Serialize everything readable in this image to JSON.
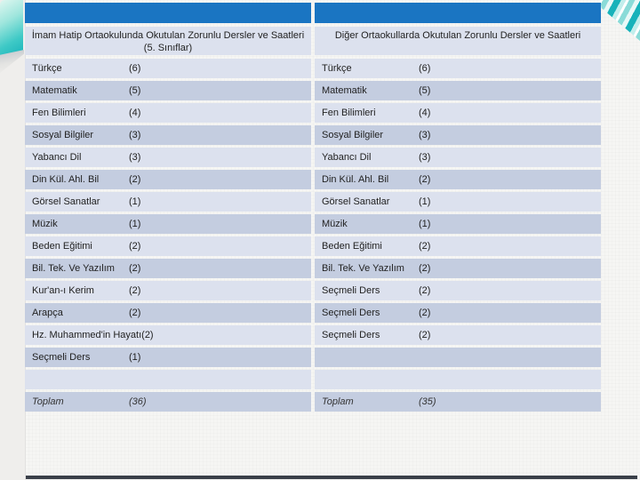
{
  "slide": {
    "type_label": "presentation-slide-curriculum-comparison-table",
    "colors": {
      "background": "#f6f6f4",
      "accent-bar": "#1a75c2",
      "band-light": "#dce1ee",
      "band-dark": "#c4cde0",
      "corner-accent": "#17b2ba",
      "bottom-bar": "#3a4049"
    }
  },
  "table": {
    "columns": [
      {
        "title_line1": "İmam Hatip Ortaokulunda Okutulan Zorunlu Dersler ve Saatleri",
        "title_line2": "(5. Sınıflar)",
        "rows": [
          [
            "Türkçe",
            "(6)"
          ],
          [
            "Matematik",
            "(5)"
          ],
          [
            "Fen Bilimleri",
            "(4)"
          ],
          [
            "Sosyal Bilgiler",
            "(3)"
          ],
          [
            "Yabancı Dil",
            "(3)"
          ],
          [
            "Din Kül. Ahl. Bil",
            "(2)"
          ],
          [
            "Görsel Sanatlar",
            "(1)"
          ],
          [
            "Müzik",
            "(1)"
          ],
          [
            "Beden Eğitimi",
            "(2)"
          ],
          [
            "Bil. Tek. Ve Yazılım",
            "(2)"
          ],
          [
            "Kur'an-ı Kerim",
            "(2)"
          ],
          [
            "Arapça",
            "(2)"
          ],
          [
            "Hz. Muhammed'in Hayatı",
            "(2)"
          ],
          [
            "Seçmeli Ders",
            "(1)"
          ],
          [
            "",
            ""
          ],
          [
            "Toplam",
            "(36)"
          ]
        ]
      },
      {
        "title_line1": "Diğer Ortaokullarda Okutulan Zorunlu Dersler ve Saatleri",
        "title_line2": "",
        "rows": [
          [
            "Türkçe",
            "(6)"
          ],
          [
            "Matematik",
            "(5)"
          ],
          [
            "Fen Bilimleri",
            "(4)"
          ],
          [
            "Sosyal Bilgiler",
            "(3)"
          ],
          [
            "Yabancı Dil",
            "(3)"
          ],
          [
            "Din Kül. Ahl. Bil",
            "(2)"
          ],
          [
            "Görsel Sanatlar",
            "(1)"
          ],
          [
            "Müzik",
            "(1)"
          ],
          [
            "Beden Eğitimi",
            "(2)"
          ],
          [
            "Bil. Tek. Ve Yazılım",
            "(2)"
          ],
          [
            "Seçmeli Ders",
            "(2)"
          ],
          [
            "Seçmeli Ders",
            "(2)"
          ],
          [
            "Seçmeli Ders",
            "(2)"
          ],
          [
            "",
            ""
          ],
          [
            "",
            ""
          ],
          [
            "Toplam",
            "(35)"
          ]
        ]
      }
    ]
  }
}
